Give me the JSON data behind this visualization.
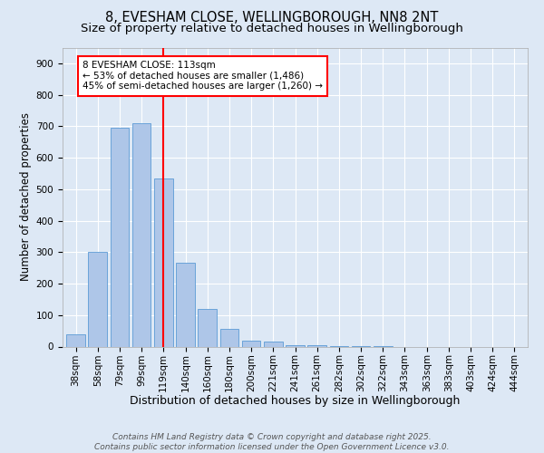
{
  "title1": "8, EVESHAM CLOSE, WELLINGBOROUGH, NN8 2NT",
  "title2": "Size of property relative to detached houses in Wellingborough",
  "xlabel": "Distribution of detached houses by size in Wellingborough",
  "ylabel": "Number of detached properties",
  "categories": [
    "38sqm",
    "58sqm",
    "79sqm",
    "99sqm",
    "119sqm",
    "140sqm",
    "160sqm",
    "180sqm",
    "200sqm",
    "221sqm",
    "241sqm",
    "261sqm",
    "282sqm",
    "302sqm",
    "322sqm",
    "343sqm",
    "363sqm",
    "383sqm",
    "403sqm",
    "424sqm",
    "444sqm"
  ],
  "values": [
    40,
    300,
    695,
    710,
    535,
    265,
    120,
    55,
    20,
    15,
    5,
    3,
    2,
    1,
    1,
    0,
    0,
    0,
    0,
    0,
    0
  ],
  "bar_color": "#aec6e8",
  "bar_edge_color": "#5b9bd5",
  "vline_x_index": 4,
  "vline_color": "red",
  "annotation_text": "8 EVESHAM CLOSE: 113sqm\n← 53% of detached houses are smaller (1,486)\n45% of semi-detached houses are larger (1,260) →",
  "annotation_box_color": "#ffffff",
  "annotation_box_edge": "red",
  "ylim": [
    0,
    950
  ],
  "yticks": [
    0,
    100,
    200,
    300,
    400,
    500,
    600,
    700,
    800,
    900
  ],
  "background_color": "#dde8f5",
  "footnote": "Contains HM Land Registry data © Crown copyright and database right 2025.\nContains public sector information licensed under the Open Government Licence v3.0.",
  "title1_fontsize": 10.5,
  "title2_fontsize": 9.5,
  "xlabel_fontsize": 9,
  "ylabel_fontsize": 8.5,
  "tick_fontsize": 7.5,
  "annot_fontsize": 7.5,
  "footnote_fontsize": 6.5
}
